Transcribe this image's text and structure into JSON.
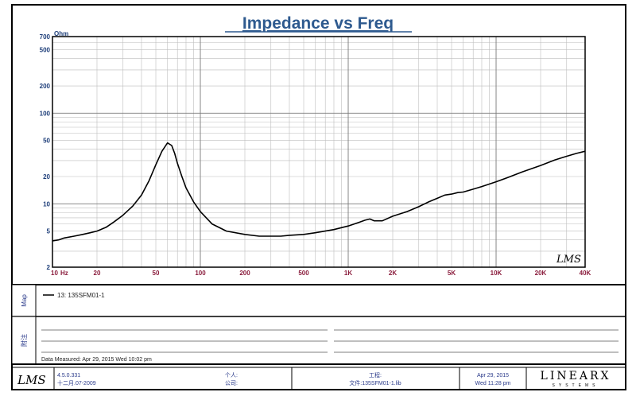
{
  "colors": {
    "accent": "#2e5a8f",
    "tick_label": "#1f3f7a",
    "x_tick_label": "#8a1c3c",
    "grid": "#b8b8b8",
    "curve": "#000000"
  },
  "chart_data": {
    "type": "line",
    "title": "Impedance vs Freq",
    "ylabel": "Ohm",
    "xlabel": "",
    "x_scale": "log",
    "y_scale": "log",
    "xlim": [
      10,
      40000
    ],
    "ylim": [
      2,
      700
    ],
    "grid": true,
    "x_ticks": [
      {
        "v": 10,
        "label": "10"
      },
      {
        "v": 20,
        "label": "20"
      },
      {
        "v": 50,
        "label": "50"
      },
      {
        "v": 100,
        "label": "100"
      },
      {
        "v": 200,
        "label": "200"
      },
      {
        "v": 500,
        "label": "500"
      },
      {
        "v": 1000,
        "label": "1K"
      },
      {
        "v": 2000,
        "label": "2K"
      },
      {
        "v": 5000,
        "label": "5K"
      },
      {
        "v": 10000,
        "label": "10K"
      },
      {
        "v": 20000,
        "label": "20K"
      },
      {
        "v": 40000,
        "label": "40K"
      }
    ],
    "x_unit_label": "Hz",
    "y_ticks": [
      {
        "v": 2,
        "label": "2"
      },
      {
        "v": 5,
        "label": "5"
      },
      {
        "v": 10,
        "label": "10"
      },
      {
        "v": 20,
        "label": "20"
      },
      {
        "v": 50,
        "label": "50"
      },
      {
        "v": 100,
        "label": "100"
      },
      {
        "v": 200,
        "label": "200"
      },
      {
        "v": 500,
        "label": "500"
      },
      {
        "v": 700,
        "label": "700"
      }
    ],
    "series": [
      {
        "name": "13: 135SFM01-1",
        "x": [
          10,
          11,
          12,
          14,
          16,
          18,
          20,
          23,
          26,
          30,
          35,
          40,
          45,
          50,
          55,
          60,
          64,
          67,
          70,
          75,
          80,
          90,
          100,
          120,
          150,
          200,
          250,
          300,
          350,
          400,
          500,
          600,
          800,
          1000,
          1200,
          1300,
          1400,
          1500,
          1700,
          2000,
          2500,
          3000,
          3500,
          4000,
          4500,
          5000,
          5500,
          6000,
          7000,
          8000,
          10000,
          12000,
          15000,
          20000,
          25000,
          30000,
          35000,
          40000
        ],
        "values": [
          3.9,
          4.0,
          4.2,
          4.4,
          4.6,
          4.8,
          5.0,
          5.5,
          6.3,
          7.5,
          9.5,
          12.5,
          18,
          27,
          38,
          47,
          44,
          36,
          28,
          20,
          15,
          10.5,
          8.2,
          6.0,
          5.0,
          4.6,
          4.4,
          4.4,
          4.4,
          4.5,
          4.6,
          4.8,
          5.2,
          5.7,
          6.3,
          6.6,
          6.8,
          6.5,
          6.5,
          7.3,
          8.2,
          9.3,
          10.5,
          11.5,
          12.5,
          12.8,
          13.3,
          13.5,
          14.5,
          15.5,
          17.5,
          19.5,
          22.5,
          26.5,
          30.5,
          33.5,
          36,
          38
        ]
      }
    ]
  },
  "legend": {
    "section_label": "Map",
    "entry": "13: 135SFM01-1"
  },
  "notes": {
    "section_label": "附注",
    "data_measured": "Data Measured: Apr 29, 2015  Wed 10:02 pm"
  },
  "footer": {
    "logo": "LMS",
    "version": "4.5.0.331",
    "build_date": "十二月.07-2009",
    "person_label": "个人:",
    "company_label": "公司:",
    "project_label": "工程:",
    "file_label": "文件:135SFM01-1.lib",
    "date": "Apr 29, 2015",
    "datetime": "Wed 11:28 pm",
    "brand": "LINEARX",
    "brand_sub": "SYSTEMS"
  }
}
